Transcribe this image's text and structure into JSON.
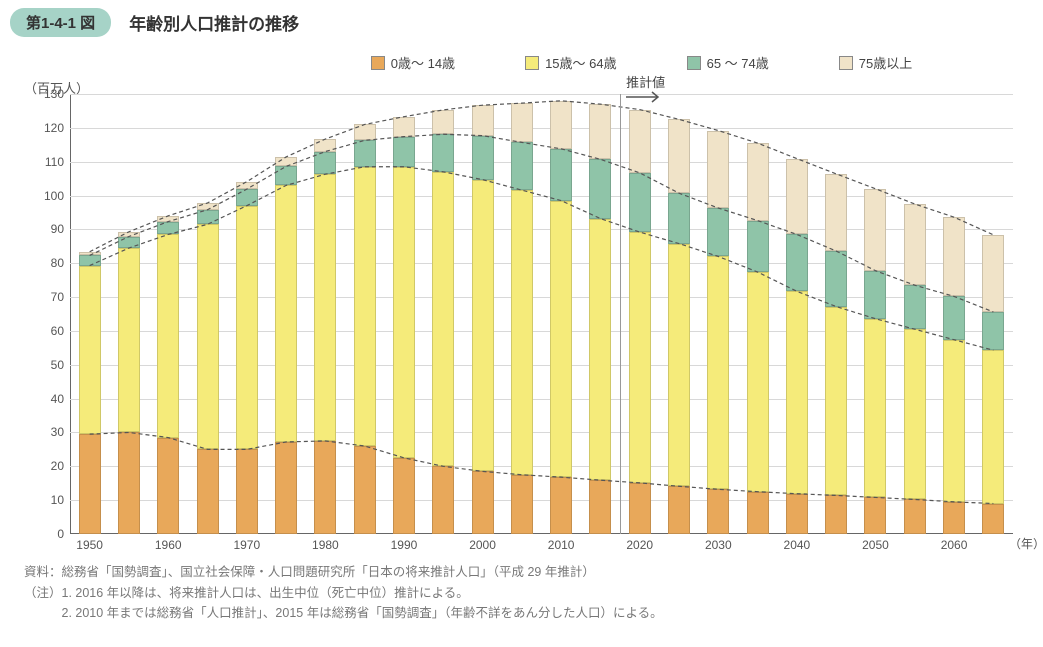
{
  "header": {
    "badge": "第1-4-1 図",
    "title": "年齢別人口推計の推移"
  },
  "legend": {
    "items": [
      {
        "label": "0歳～ 14歳",
        "color": "#e8a85a"
      },
      {
        "label": "15歳～ 64歳",
        "color": "#f5eb7a"
      },
      {
        "label": "65 ～ 74歳",
        "color": "#8fc4a8"
      },
      {
        "label": "75歳以上",
        "color": "#f0e3c8"
      }
    ]
  },
  "estimate": {
    "label": "推計値",
    "x_index": 13,
    "arrow_color": "#555"
  },
  "y_axis": {
    "label": "（百万人）",
    "max": 130,
    "ticks": [
      0,
      10,
      20,
      30,
      40,
      50,
      60,
      70,
      80,
      90,
      100,
      110,
      120,
      130
    ],
    "label_fontsize": 13,
    "tick_fontsize": 12
  },
  "x_axis": {
    "label": "（年）",
    "years": [
      1950,
      1955,
      1960,
      1965,
      1970,
      1975,
      1980,
      1985,
      1990,
      1995,
      2000,
      2005,
      2010,
      2015,
      2020,
      2025,
      2030,
      2035,
      2040,
      2045,
      2050,
      2055,
      2060,
      2065
    ],
    "tick_years": [
      1950,
      1960,
      1970,
      1980,
      1990,
      2000,
      2010,
      2020,
      2030,
      2040,
      2050,
      2060
    ]
  },
  "series": {
    "colors": {
      "age0_14": "#e8a85a",
      "age15_64": "#f5eb7a",
      "age65_74": "#8fc4a8",
      "age75plus": "#f0e3c8"
    },
    "bar_width_frac": 0.56,
    "data": [
      {
        "y": 1950,
        "s0": 29.5,
        "s1": 49.8,
        "s2": 3.0,
        "s3": 1.1
      },
      {
        "y": 1955,
        "s0": 30.0,
        "s1": 54.5,
        "s2": 3.4,
        "s3": 1.4
      },
      {
        "y": 1960,
        "s0": 28.5,
        "s1": 60.0,
        "s2": 3.8,
        "s3": 1.7
      },
      {
        "y": 1965,
        "s0": 25.0,
        "s1": 66.5,
        "s2": 4.3,
        "s3": 2.0
      },
      {
        "y": 1970,
        "s0": 25.0,
        "s1": 72.0,
        "s2": 4.9,
        "s3": 2.2
      },
      {
        "y": 1975,
        "s0": 27.2,
        "s1": 75.8,
        "s2": 5.6,
        "s3": 2.8
      },
      {
        "y": 1980,
        "s0": 27.5,
        "s1": 78.8,
        "s2": 6.7,
        "s3": 3.7
      },
      {
        "y": 1985,
        "s0": 26.0,
        "s1": 82.5,
        "s2": 7.8,
        "s3": 4.7
      },
      {
        "y": 1990,
        "s0": 22.5,
        "s1": 86.0,
        "s2": 8.9,
        "s3": 5.9
      },
      {
        "y": 1995,
        "s0": 20.0,
        "s1": 87.0,
        "s2": 11.1,
        "s3": 7.2
      },
      {
        "y": 2000,
        "s0": 18.5,
        "s1": 86.2,
        "s2": 13.0,
        "s3": 9.0
      },
      {
        "y": 2005,
        "s0": 17.5,
        "s1": 84.1,
        "s2": 14.1,
        "s3": 11.6
      },
      {
        "y": 2010,
        "s0": 16.8,
        "s1": 81.7,
        "s2": 15.3,
        "s3": 14.2
      },
      {
        "y": 2015,
        "s0": 15.9,
        "s1": 77.3,
        "s2": 17.5,
        "s3": 16.3
      },
      {
        "y": 2020,
        "s0": 15.1,
        "s1": 74.1,
        "s2": 17.5,
        "s3": 18.7
      },
      {
        "y": 2025,
        "s0": 14.1,
        "s1": 71.7,
        "s2": 14.9,
        "s3": 21.8
      },
      {
        "y": 2030,
        "s0": 13.2,
        "s1": 68.8,
        "s2": 14.3,
        "s3": 22.9
      },
      {
        "y": 2035,
        "s0": 12.5,
        "s1": 64.9,
        "s2": 15.2,
        "s3": 22.9
      },
      {
        "y": 2040,
        "s0": 11.9,
        "s1": 59.8,
        "s2": 16.8,
        "s3": 22.4
      },
      {
        "y": 2045,
        "s0": 11.4,
        "s1": 55.8,
        "s2": 16.4,
        "s3": 22.8
      },
      {
        "y": 2050,
        "s0": 10.8,
        "s1": 52.8,
        "s2": 14.2,
        "s3": 24.2
      },
      {
        "y": 2055,
        "s0": 10.2,
        "s1": 50.3,
        "s2": 13.0,
        "s3": 24.0
      },
      {
        "y": 2060,
        "s0": 9.5,
        "s1": 47.9,
        "s2": 12.8,
        "s3": 23.4
      },
      {
        "y": 2065,
        "s0": 9.0,
        "s1": 45.3,
        "s2": 11.3,
        "s3": 22.8
      }
    ]
  },
  "trend_style": {
    "stroke": "#555",
    "dash": "4 3",
    "width": 1.2
  },
  "grid_color": "#d8d8d8",
  "notes": {
    "line1": "資料：総務省「国勢調査」、国立社会保障・人口問題研究所「日本の将来推計人口」（平成 29 年推計）",
    "line2": "（注）1. 2016 年以降は、将来推計人口は、出生中位（死亡中位）推計による。",
    "line3": "　　　2. 2010 年までは総務省「人口推計」、2015 年は総務省「国勢調査」（年齢不詳をあん分した人口）による。"
  }
}
